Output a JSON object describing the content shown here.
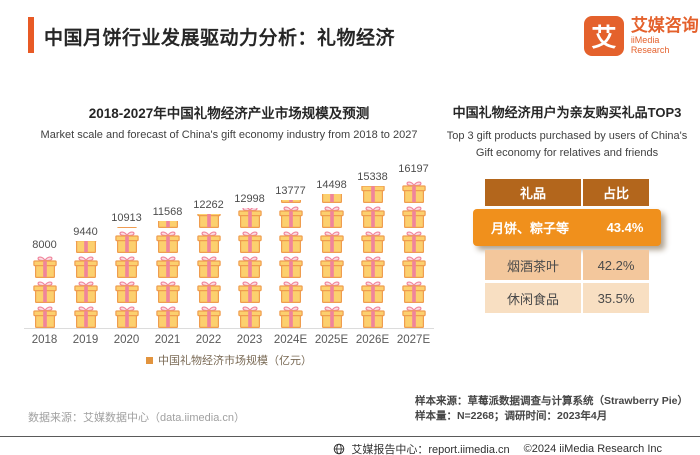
{
  "header": {
    "title": "中国月饼行业发展驱动力分析：礼物经济",
    "logo": {
      "mark": "艾",
      "name_cn": "艾媒咨询",
      "name_en": "iiMedia Research"
    }
  },
  "colors": {
    "accent": "#e85a25",
    "gift_body": "#fcd06e",
    "gift_outline": "#ef9d4f",
    "gift_ribbon": "#f0849b",
    "gift_bow_fill": "#fbdde4",
    "table_header_bg": "#b3661c",
    "table_highlight_bg": "#f0901c",
    "table_row2_bg": "#f3c79c",
    "table_row3_bg": "#f8dfc2"
  },
  "chart_data": {
    "type": "bar",
    "title": "2018-2027年中国礼物经济产业市场规模及预测",
    "subtitle": "Market scale and forecast of China's gift economy industry from 2018 to 2027",
    "categories": [
      "2018",
      "2019",
      "2020",
      "2021",
      "2022",
      "2023",
      "2024E",
      "2025E",
      "2026E",
      "2027E"
    ],
    "values": [
      8000,
      9440,
      10913,
      11568,
      12262,
      12998,
      13777,
      14498,
      15338,
      16197
    ],
    "legend": "中国礼物经济市场规模（亿元）",
    "ylabel": "亿元",
    "ylim": [
      0,
      16200
    ],
    "grid": false,
    "legend_position": "bottom"
  },
  "top3": {
    "title": "中国礼物经济用户为亲友购买礼品TOP3",
    "subtitle": "Top 3 gift products purchased by users of China's Gift economy for relatives and friends",
    "table": {
      "headers": [
        "礼品",
        "占比"
      ],
      "rows": [
        {
          "label": "月饼、粽子等",
          "value": "43.4%",
          "highlighted": true
        },
        {
          "label": "烟酒茶叶",
          "value": "42.2%",
          "highlighted": false
        },
        {
          "label": "休闲食品",
          "value": "35.5%",
          "highlighted": false
        }
      ]
    }
  },
  "footnotes": {
    "source_left": "数据来源：艾媒数据中心（data.iimedia.cn）",
    "sample_source": "样本来源：草莓派数据调查与计算系统（Strawberry Pie）",
    "sample_info": "样本量：N=2268；调研时间：2023年4月"
  },
  "footer": {
    "site": "艾媒报告中心：report.iimedia.cn",
    "copyright": "©2024  iiMedia Research Inc"
  }
}
